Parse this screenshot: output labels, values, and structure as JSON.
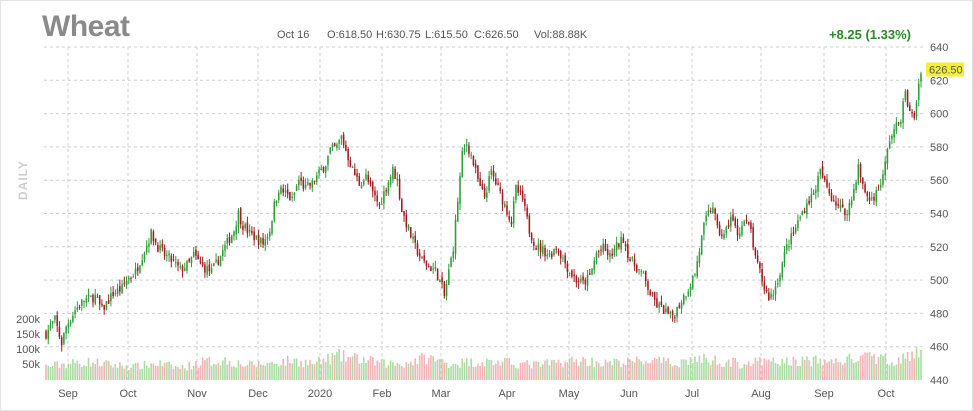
{
  "header": {
    "title": "Wheat",
    "date": "Oct 16",
    "open": "O:618.50",
    "high": "H:630.75",
    "low": "L:615.50",
    "close": "C:626.50",
    "volume": "Vol:88.88K",
    "change": "+8.25 (1.33%)",
    "side_label": "DAILY"
  },
  "colors": {
    "up": "#2e9e3a",
    "down": "#a11c24",
    "volume_up": "#a8dca0",
    "volume_down": "#f2b3b6",
    "last_price_bg": "#f5ef3c",
    "change_text": "#2a8a2a"
  },
  "chart_data": {
    "type": "candlestick",
    "title": "Wheat",
    "last_price_label": "626.50",
    "ylim": [
      440,
      640
    ],
    "y_ticks": [
      "440",
      "460",
      "480",
      "500",
      "520",
      "540",
      "560",
      "580",
      "600",
      "620",
      "640"
    ],
    "x_labels": [
      "Sep",
      "Oct",
      "Nov",
      "Dec",
      "2020",
      "Feb",
      "Mar",
      "Apr",
      "May",
      "Jun",
      "Jul",
      "Aug",
      "Sep",
      "Oct"
    ],
    "volume_ticks": [
      "50k",
      "100k",
      "150k",
      "200k"
    ],
    "grid": true,
    "price_anchors": [
      [
        0,
        468
      ],
      [
        4,
        476
      ],
      [
        7,
        462
      ],
      [
        9,
        472
      ],
      [
        13,
        482
      ],
      [
        17,
        488
      ],
      [
        22,
        490
      ],
      [
        25,
        482
      ],
      [
        30,
        492
      ],
      [
        34,
        495
      ],
      [
        36,
        500
      ],
      [
        40,
        505
      ],
      [
        44,
        518
      ],
      [
        47,
        528
      ],
      [
        50,
        520
      ],
      [
        53,
        515
      ],
      [
        56,
        512
      ],
      [
        60,
        506
      ],
      [
        64,
        510
      ],
      [
        66,
        515
      ],
      [
        70,
        508
      ],
      [
        74,
        505
      ],
      [
        77,
        512
      ],
      [
        80,
        520
      ],
      [
        84,
        530
      ],
      [
        86,
        540
      ],
      [
        88,
        533
      ],
      [
        91,
        528
      ],
      [
        94,
        525
      ],
      [
        97,
        522
      ],
      [
        100,
        530
      ],
      [
        102,
        545
      ],
      [
        104,
        555
      ],
      [
        107,
        552
      ],
      [
        110,
        548
      ],
      [
        113,
        560
      ],
      [
        116,
        555
      ],
      [
        119,
        558
      ],
      [
        122,
        564
      ],
      [
        125,
        570
      ],
      [
        127,
        578
      ],
      [
        130,
        580
      ],
      [
        132,
        586
      ],
      [
        134,
        578
      ],
      [
        137,
        566
      ],
      [
        140,
        558
      ],
      [
        143,
        562
      ],
      [
        146,
        552
      ],
      [
        149,
        545
      ],
      [
        152,
        556
      ],
      [
        155,
        566
      ],
      [
        157,
        560
      ],
      [
        159,
        542
      ],
      [
        162,
        530
      ],
      [
        165,
        520
      ],
      [
        168,
        512
      ],
      [
        171,
        508
      ],
      [
        174,
        506
      ],
      [
        177,
        496
      ],
      [
        178,
        490
      ],
      [
        180,
        505
      ],
      [
        182,
        520
      ],
      [
        184,
        548
      ],
      [
        186,
        575
      ],
      [
        188,
        582
      ],
      [
        190,
        575
      ],
      [
        192,
        565
      ],
      [
        194,
        555
      ],
      [
        196,
        550
      ],
      [
        199,
        565
      ],
      [
        202,
        555
      ],
      [
        205,
        545
      ],
      [
        208,
        535
      ],
      [
        210,
        555
      ],
      [
        213,
        548
      ],
      [
        216,
        530
      ],
      [
        219,
        520
      ],
      [
        222,
        518
      ],
      [
        225,
        515
      ],
      [
        228,
        520
      ],
      [
        231,
        513
      ],
      [
        234,
        505
      ],
      [
        237,
        500
      ],
      [
        240,
        498
      ],
      [
        243,
        502
      ],
      [
        246,
        516
      ],
      [
        249,
        519
      ],
      [
        252,
        514
      ],
      [
        255,
        520
      ],
      [
        258,
        525
      ],
      [
        261,
        512
      ],
      [
        264,
        508
      ],
      [
        267,
        502
      ],
      [
        270,
        492
      ],
      [
        273,
        485
      ],
      [
        276,
        482
      ],
      [
        279,
        478
      ],
      [
        281,
        480
      ],
      [
        284,
        488
      ],
      [
        287,
        495
      ],
      [
        290,
        504
      ],
      [
        292,
        518
      ],
      [
        294,
        532
      ],
      [
        296,
        540
      ],
      [
        298,
        545
      ],
      [
        300,
        530
      ],
      [
        303,
        526
      ],
      [
        306,
        538
      ],
      [
        309,
        528
      ],
      [
        312,
        535
      ],
      [
        315,
        530
      ],
      [
        317,
        512
      ],
      [
        319,
        505
      ],
      [
        321,
        495
      ],
      [
        323,
        490
      ],
      [
        325,
        492
      ],
      [
        328,
        505
      ],
      [
        331,
        520
      ],
      [
        334,
        528
      ],
      [
        337,
        538
      ],
      [
        340,
        546
      ],
      [
        343,
        552
      ],
      [
        346,
        565
      ],
      [
        348,
        558
      ],
      [
        351,
        550
      ],
      [
        354,
        545
      ],
      [
        357,
        540
      ],
      [
        360,
        548
      ],
      [
        363,
        568
      ],
      [
        365,
        556
      ],
      [
        368,
        548
      ],
      [
        371,
        552
      ],
      [
        374,
        562
      ],
      [
        377,
        585
      ],
      [
        380,
        592
      ],
      [
        382,
        598
      ],
      [
        384,
        612
      ],
      [
        386,
        600
      ],
      [
        388,
        598
      ],
      [
        390,
        618
      ],
      [
        391,
        626.5
      ]
    ],
    "volume_anchors": [
      [
        0,
        45
      ],
      [
        10,
        55
      ],
      [
        20,
        60
      ],
      [
        30,
        50
      ],
      [
        40,
        45
      ],
      [
        50,
        55
      ],
      [
        60,
        40
      ],
      [
        70,
        60
      ],
      [
        80,
        65
      ],
      [
        90,
        50
      ],
      [
        100,
        55
      ],
      [
        110,
        65
      ],
      [
        120,
        55
      ],
      [
        130,
        80
      ],
      [
        140,
        70
      ],
      [
        150,
        55
      ],
      [
        160,
        55
      ],
      [
        170,
        75
      ],
      [
        180,
        55
      ],
      [
        190,
        60
      ],
      [
        200,
        60
      ],
      [
        210,
        55
      ],
      [
        220,
        50
      ],
      [
        230,
        60
      ],
      [
        240,
        65
      ],
      [
        250,
        55
      ],
      [
        260,
        60
      ],
      [
        270,
        65
      ],
      [
        280,
        55
      ],
      [
        290,
        70
      ],
      [
        300,
        65
      ],
      [
        310,
        55
      ],
      [
        320,
        60
      ],
      [
        330,
        60
      ],
      [
        340,
        65
      ],
      [
        350,
        60
      ],
      [
        360,
        70
      ],
      [
        370,
        75
      ],
      [
        380,
        65
      ],
      [
        391,
        88.88
      ]
    ]
  }
}
